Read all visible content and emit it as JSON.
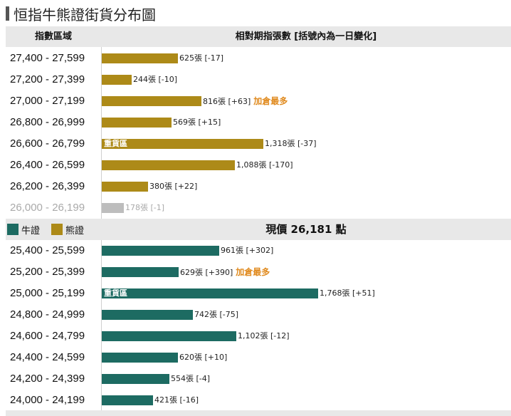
{
  "page": {
    "title": "恒指牛熊證街貨分布圖",
    "col_range": "指數區域",
    "col_bars": "相對期指張數 [括號內為一日變化]",
    "legend": {
      "bull_label": "牛證",
      "bear_label": "熊證"
    },
    "current_price": "現價 26,181 點"
  },
  "colors": {
    "bear": "#ad8a18",
    "bull": "#1d6b62",
    "dim": "#bdbdbd",
    "note": "#e08a1e"
  },
  "chart_data": {
    "type": "bar",
    "orientation": "horizontal",
    "unit": "張",
    "bear": [
      {
        "range": "27,400 - 27,599",
        "value": 625,
        "label": "625張 [-17]",
        "note": "",
        "inbar": ""
      },
      {
        "range": "27,200 - 27,399",
        "value": 244,
        "label": "244張 [-10]",
        "note": "",
        "inbar": ""
      },
      {
        "range": "27,000 - 27,199",
        "value": 816,
        "label": "816張 [+63]",
        "note": "加倉最多",
        "inbar": ""
      },
      {
        "range": "26,800 - 26,999",
        "value": 569,
        "label": "569張 [+15]",
        "note": "",
        "inbar": ""
      },
      {
        "range": "26,600 - 26,799",
        "value": 1318,
        "label": "1,318張 [-37]",
        "note": "",
        "inbar": "重貨區"
      },
      {
        "range": "26,400 - 26,599",
        "value": 1088,
        "label": "1,088張 [-170]",
        "note": "",
        "inbar": ""
      },
      {
        "range": "26,200 - 26,399",
        "value": 380,
        "label": "380張 [+22]",
        "note": "",
        "inbar": ""
      },
      {
        "range": "26,000 - 26,199",
        "value": 178,
        "label": "178張 [-1]",
        "note": "",
        "inbar": "",
        "dim": true
      }
    ],
    "bull": [
      {
        "range": "25,400 - 25,599",
        "value": 961,
        "label": "961張 [+302]",
        "note": "",
        "inbar": ""
      },
      {
        "range": "25,200 - 25,399",
        "value": 629,
        "label": "629張 [+390]",
        "note": "加倉最多",
        "inbar": ""
      },
      {
        "range": "25,000 - 25,199",
        "value": 1768,
        "label": "1,768張 [+51]",
        "note": "",
        "inbar": "重貨區"
      },
      {
        "range": "24,800 - 24,999",
        "value": 742,
        "label": "742張 [-75]",
        "note": "",
        "inbar": ""
      },
      {
        "range": "24,600 - 24,799",
        "value": 1102,
        "label": "1,102張 [-12]",
        "note": "",
        "inbar": ""
      },
      {
        "range": "24,400 - 24,599",
        "value": 620,
        "label": "620張 [+10]",
        "note": "",
        "inbar": ""
      },
      {
        "range": "24,200 - 24,399",
        "value": 554,
        "label": "554張 [-4]",
        "note": "",
        "inbar": ""
      },
      {
        "range": "24,000 - 24,199",
        "value": 421,
        "label": "421張 [-16]",
        "note": "",
        "inbar": ""
      }
    ]
  }
}
